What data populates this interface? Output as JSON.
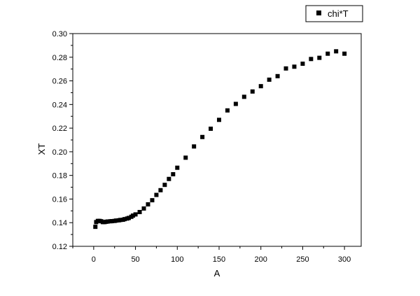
{
  "chart_data": {
    "type": "scatter",
    "xlabel": "A",
    "ylabel": "XT",
    "xlim": [
      -25,
      320
    ],
    "ylim": [
      0.12,
      0.3
    ],
    "xticks": [
      0,
      50,
      100,
      150,
      200,
      250,
      300
    ],
    "yticks": [
      "0.12",
      "0.14",
      "0.16",
      "0.18",
      "0.20",
      "0.22",
      "0.24",
      "0.26",
      "0.28",
      "0.30"
    ],
    "grid": false,
    "legend_position": "top-right",
    "marker_color": "#000000",
    "series": [
      {
        "name": "chi*T",
        "marker": "square",
        "points": [
          [
            2,
            0.1365
          ],
          [
            3,
            0.1405
          ],
          [
            5,
            0.1415
          ],
          [
            7,
            0.1415
          ],
          [
            9,
            0.1412
          ],
          [
            11,
            0.1405
          ],
          [
            13,
            0.1405
          ],
          [
            15,
            0.1408
          ],
          [
            17,
            0.141
          ],
          [
            20,
            0.1412
          ],
          [
            22,
            0.1413
          ],
          [
            25,
            0.1415
          ],
          [
            27,
            0.1418
          ],
          [
            30,
            0.142
          ],
          [
            32,
            0.1423
          ],
          [
            35,
            0.1425
          ],
          [
            37,
            0.143
          ],
          [
            40,
            0.1435
          ],
          [
            42,
            0.144
          ],
          [
            45,
            0.145
          ],
          [
            47,
            0.146
          ],
          [
            50,
            0.147
          ],
          [
            55,
            0.149
          ],
          [
            60,
            0.152
          ],
          [
            65,
            0.1555
          ],
          [
            70,
            0.159
          ],
          [
            75,
            0.1635
          ],
          [
            80,
            0.1675
          ],
          [
            85,
            0.172
          ],
          [
            90,
            0.177
          ],
          [
            95,
            0.181
          ],
          [
            100,
            0.1865
          ],
          [
            110,
            0.195
          ],
          [
            120,
            0.2045
          ],
          [
            130,
            0.2125
          ],
          [
            140,
            0.2195
          ],
          [
            150,
            0.227
          ],
          [
            160,
            0.235
          ],
          [
            170,
            0.2405
          ],
          [
            180,
            0.2465
          ],
          [
            190,
            0.251
          ],
          [
            200,
            0.2555
          ],
          [
            210,
            0.261
          ],
          [
            220,
            0.264
          ],
          [
            230,
            0.2705
          ],
          [
            240,
            0.272
          ],
          [
            250,
            0.2745
          ],
          [
            260,
            0.2785
          ],
          [
            270,
            0.2795
          ],
          [
            280,
            0.283
          ],
          [
            290,
            0.285
          ],
          [
            300,
            0.283
          ]
        ]
      }
    ]
  }
}
